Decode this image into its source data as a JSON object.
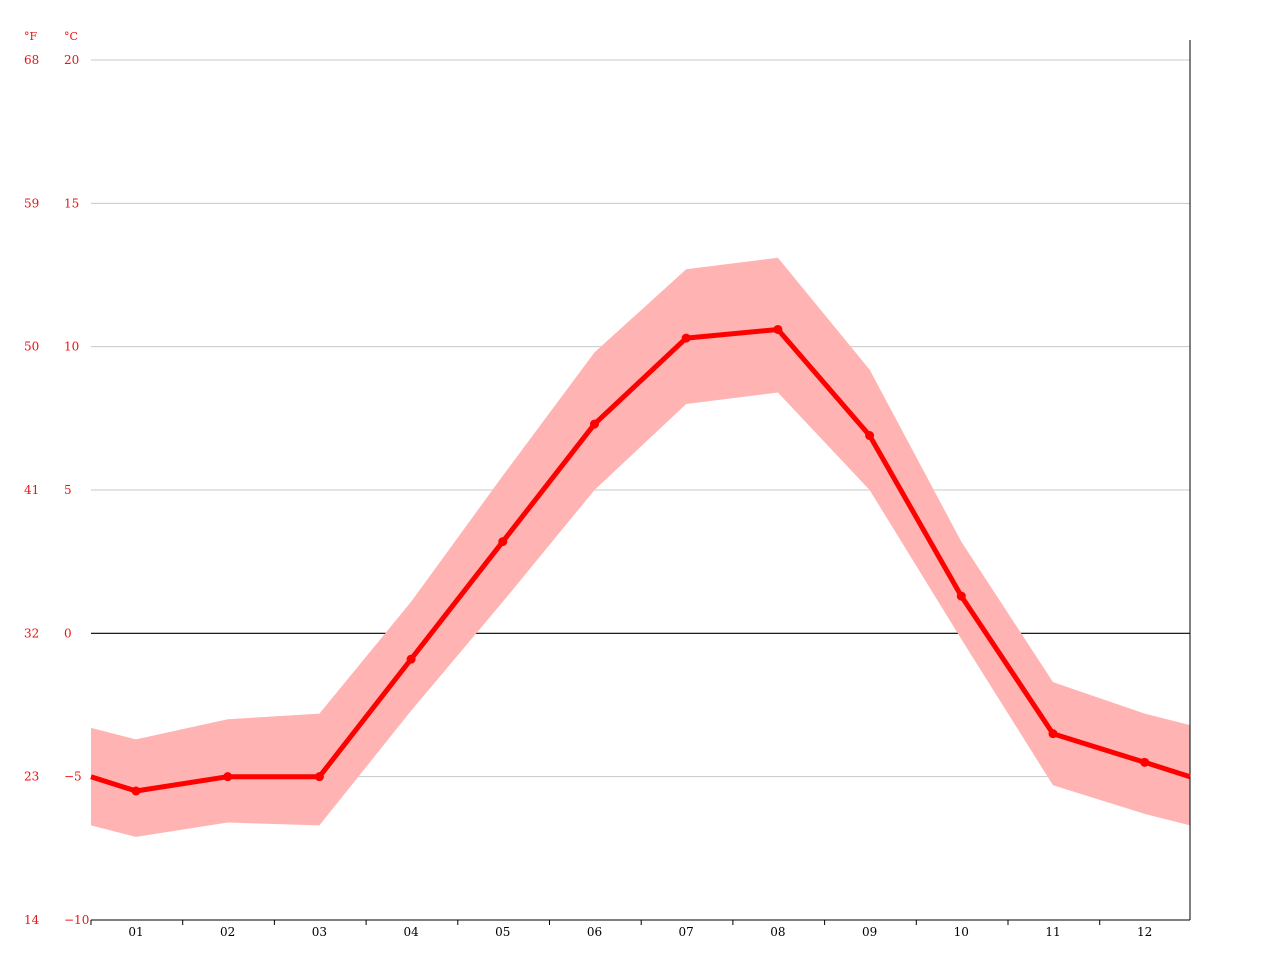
{
  "chart_data": {
    "type": "line",
    "title": "",
    "xlabel": "",
    "ylabel": "",
    "unit_left": "°F",
    "unit_right": "°C",
    "categories": [
      "01",
      "02",
      "03",
      "04",
      "05",
      "06",
      "07",
      "08",
      "09",
      "10",
      "11",
      "12"
    ],
    "y_ticks_c": [
      "20",
      "15",
      "10",
      "5",
      "0",
      "−5",
      "−10"
    ],
    "y_ticks_f": [
      "68",
      "59",
      "50",
      "41",
      "32",
      "23",
      "14"
    ],
    "y_tick_values_c": [
      20,
      15,
      10,
      5,
      0,
      -5,
      -10
    ],
    "ylim": [
      -10,
      20
    ],
    "grid": true,
    "series": [
      {
        "kind": "line",
        "values": [
          -5.5,
          -5.0,
          -5.0,
          -0.9,
          3.2,
          7.3,
          10.3,
          10.6,
          6.9,
          1.3,
          -3.5,
          -4.5
        ],
        "edge_start": -5.0,
        "edge_end": -5.0
      },
      {
        "kind": "range-high",
        "values": [
          -3.7,
          -3.0,
          -2.8,
          1.1,
          5.5,
          9.8,
          12.7,
          13.1,
          9.2,
          3.2,
          -1.7,
          -2.8
        ],
        "edge_start": -3.3,
        "edge_end": -3.2
      },
      {
        "kind": "range-low",
        "values": [
          -7.1,
          -6.6,
          -6.7,
          -2.7,
          1.1,
          5.0,
          8.0,
          8.4,
          5.0,
          -0.2,
          -5.3,
          -6.3
        ],
        "edge_start": -6.7,
        "edge_end": -6.7
      }
    ],
    "colors": {
      "line": "#ff0000",
      "band": "#ffb3b3",
      "grid": "#c8c8c8",
      "zero_line": "#000000",
      "axis": "#000000",
      "tick_text": "#ee1111"
    }
  }
}
